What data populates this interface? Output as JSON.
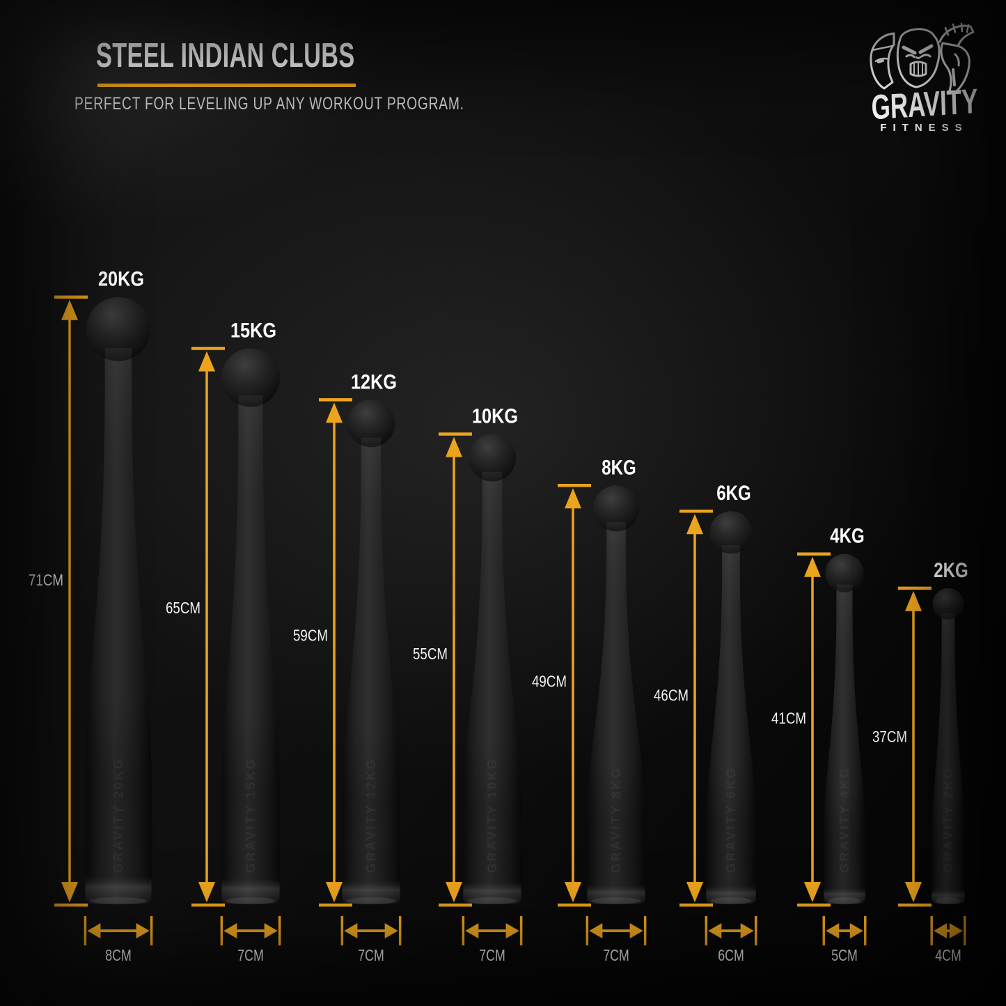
{
  "header": {
    "title": "STEEL INDIAN CLUBS",
    "subtitle": "PERFECT FOR LEVELING UP ANY WORKOUT PROGRAM."
  },
  "brand": {
    "name": "GRAVITY",
    "subname": "FITNESS",
    "masks_icon": "three-warrior-masks-icon"
  },
  "colors": {
    "accent": "#ECA41D",
    "background": "#0D0D0D",
    "club_body": "#262626",
    "text_primary": "#FFFFFF",
    "text_secondary": "#C9C9C9"
  },
  "diagram": {
    "unit_height": "CM",
    "unit_width": "CM",
    "clubs": [
      {
        "kg_label": "20KG",
        "height_label": "71CM",
        "width_label": "8CM",
        "weight_kg": 20,
        "height_cm": 71,
        "width_cm": 8,
        "engraving": "GRAVITY 20KG"
      },
      {
        "kg_label": "15KG",
        "height_label": "65CM",
        "width_label": "7CM",
        "weight_kg": 15,
        "height_cm": 65,
        "width_cm": 7,
        "engraving": "GRAVITY 15KG"
      },
      {
        "kg_label": "12KG",
        "height_label": "59CM",
        "width_label": "7CM",
        "weight_kg": 12,
        "height_cm": 59,
        "width_cm": 7,
        "engraving": "GRAVITY 12KG"
      },
      {
        "kg_label": "10KG",
        "height_label": "55CM",
        "width_label": "7CM",
        "weight_kg": 10,
        "height_cm": 55,
        "width_cm": 7,
        "engraving": "GRAVITY 10KG"
      },
      {
        "kg_label": "8KG",
        "height_label": "49CM",
        "width_label": "7CM",
        "weight_kg": 8,
        "height_cm": 49,
        "width_cm": 7,
        "engraving": "GRAVITY 8KG"
      },
      {
        "kg_label": "6KG",
        "height_label": "46CM",
        "width_label": "6CM",
        "weight_kg": 6,
        "height_cm": 46,
        "width_cm": 6,
        "engraving": "GRAVITY 6KG"
      },
      {
        "kg_label": "4KG",
        "height_label": "41CM",
        "width_label": "5CM",
        "weight_kg": 4,
        "height_cm": 41,
        "width_cm": 5,
        "engraving": "GRAVITY 4KG"
      },
      {
        "kg_label": "2KG",
        "height_label": "37CM",
        "width_label": "4CM",
        "weight_kg": 2,
        "height_cm": 37,
        "width_cm": 4,
        "engraving": "GRAVITY 2KG"
      }
    ]
  }
}
